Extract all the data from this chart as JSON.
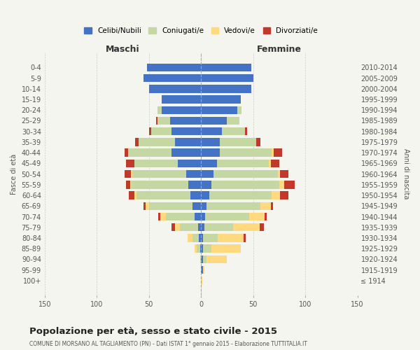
{
  "age_groups": [
    "100+",
    "95-99",
    "90-94",
    "85-89",
    "80-84",
    "75-79",
    "70-74",
    "65-69",
    "60-64",
    "55-59",
    "50-54",
    "45-49",
    "40-44",
    "35-39",
    "30-34",
    "25-29",
    "20-24",
    "15-19",
    "10-14",
    "5-9",
    "0-4"
  ],
  "birth_years": [
    "≤ 1914",
    "1915-1919",
    "1920-1924",
    "1925-1929",
    "1930-1934",
    "1935-1939",
    "1940-1944",
    "1945-1949",
    "1950-1954",
    "1955-1959",
    "1960-1964",
    "1965-1969",
    "1970-1974",
    "1975-1979",
    "1980-1984",
    "1985-1989",
    "1990-1994",
    "1995-1999",
    "2000-2004",
    "2005-2009",
    "2010-2014"
  ],
  "males": {
    "celibi": [
      0,
      0,
      0,
      1,
      2,
      3,
      6,
      8,
      10,
      12,
      14,
      22,
      28,
      25,
      28,
      30,
      38,
      38,
      50,
      55,
      52
    ],
    "coniugati": [
      0,
      0,
      1,
      3,
      6,
      17,
      28,
      42,
      52,
      55,
      52,
      42,
      42,
      35,
      20,
      12,
      4,
      0,
      0,
      0,
      0
    ],
    "vedovi": [
      0,
      0,
      0,
      2,
      5,
      5,
      5,
      3,
      2,
      1,
      1,
      0,
      0,
      0,
      0,
      0,
      0,
      0,
      0,
      0,
      0
    ],
    "divorziati": [
      0,
      0,
      0,
      0,
      0,
      3,
      2,
      2,
      5,
      4,
      6,
      8,
      3,
      3,
      2,
      1,
      0,
      0,
      0,
      0,
      0
    ]
  },
  "females": {
    "nubili": [
      0,
      2,
      2,
      2,
      2,
      3,
      4,
      5,
      8,
      10,
      12,
      15,
      18,
      18,
      20,
      25,
      35,
      38,
      48,
      50,
      48
    ],
    "coniugate": [
      0,
      0,
      3,
      8,
      14,
      28,
      42,
      52,
      60,
      65,
      62,
      50,
      50,
      35,
      22,
      12,
      4,
      0,
      0,
      0,
      0
    ],
    "vedove": [
      1,
      1,
      20,
      28,
      25,
      25,
      15,
      10,
      8,
      5,
      2,
      2,
      2,
      0,
      0,
      0,
      0,
      0,
      0,
      0,
      0
    ],
    "divorziate": [
      0,
      0,
      0,
      0,
      2,
      4,
      2,
      2,
      8,
      10,
      8,
      8,
      8,
      4,
      2,
      0,
      0,
      0,
      0,
      0,
      0
    ]
  },
  "colors": {
    "celibi": "#4472C4",
    "coniugati": "#C5D8A4",
    "vedovi": "#FFD97D",
    "divorziati": "#C0392B"
  },
  "title": "Popolazione per età, sesso e stato civile - 2015",
  "subtitle": "COMUNE DI MORSANO AL TAGLIAMENTO (PN) - Dati ISTAT 1° gennaio 2015 - Elaborazione TUTTITALIA.IT",
  "xlabel_left": "Maschi",
  "xlabel_right": "Femmine",
  "ylabel_left": "Fasce di età",
  "ylabel_right": "Anni di nascita",
  "xlim": 150,
  "background_color": "#f5f5f0",
  "legend_labels": [
    "Celibi/Nubili",
    "Coniugati/e",
    "Vedovi/e",
    "Divorziati/e"
  ]
}
